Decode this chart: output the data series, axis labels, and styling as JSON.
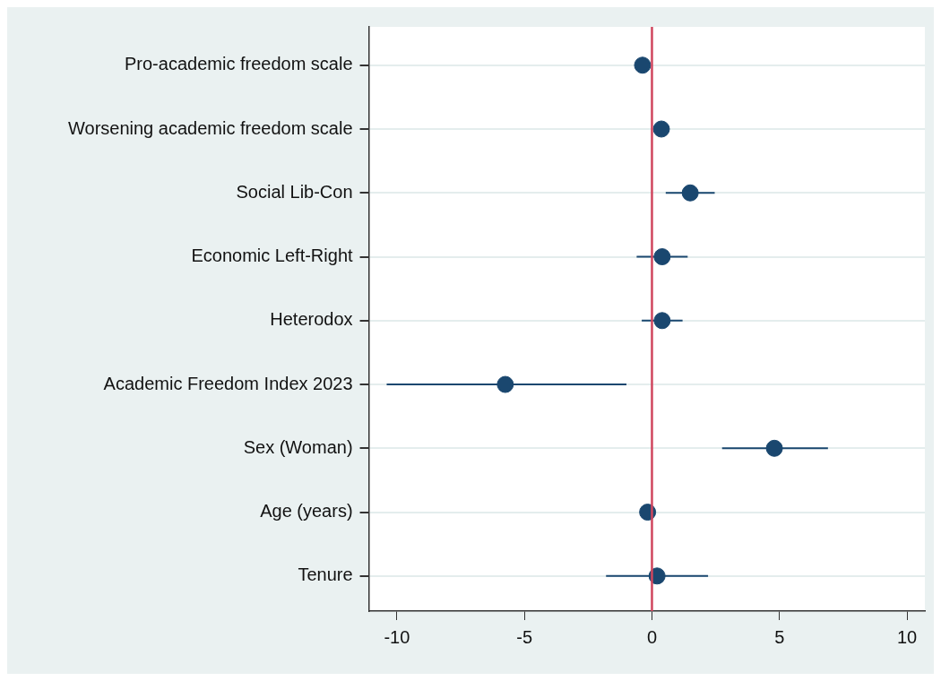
{
  "chart_data": {
    "type": "scatter",
    "orientation": "horizontal",
    "categories": [
      "Pro-academic freedom scale",
      "Worsening academic freedom scale",
      "Social Lib-Con",
      "Economic Left-Right",
      "Heterodox",
      "Academic Freedom Index 2023",
      "Sex (Woman)",
      "Age (years)",
      "Tenure"
    ],
    "values": [
      -0.37,
      0.37,
      1.5,
      0.4,
      0.4,
      -5.75,
      4.8,
      -0.17,
      0.2
    ],
    "errors": [
      null,
      null,
      [
        0.54,
        2.46
      ],
      [
        -0.6,
        1.4
      ],
      [
        -0.4,
        1.2
      ],
      [
        -10.4,
        -1.0
      ],
      [
        2.75,
        6.9
      ],
      null,
      [
        -1.8,
        2.2
      ]
    ],
    "color": "#1a476f",
    "marker": "circle",
    "xlim": [
      -11.1,
      10.7
    ],
    "xticks": [
      -10,
      -5,
      0,
      5,
      10
    ],
    "grid": "y",
    "legend": false,
    "ref_lines": [
      {
        "axis": "x",
        "value": 0,
        "color": "#d0465e"
      }
    ]
  }
}
